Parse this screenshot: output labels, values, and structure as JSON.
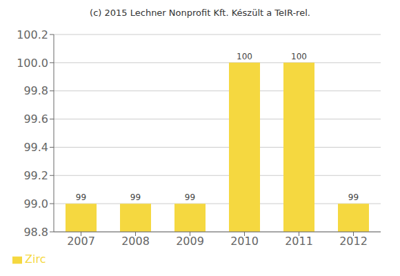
{
  "chart_data": {
    "type": "bar",
    "title": "(c) 2015 Lechner Nonprofit Kft. Készült a TeIR-rel.",
    "categories": [
      "2007",
      "2008",
      "2009",
      "2010",
      "2011",
      "2012"
    ],
    "series": [
      {
        "name": "Zirc",
        "color": "#F5D840",
        "values": [
          99,
          99,
          99,
          100,
          100,
          99
        ]
      }
    ],
    "ylim": [
      98.8,
      100.2
    ],
    "yticks": [
      98.8,
      {
        "value": 99.0,
        "label": "99.0"
      },
      99.2,
      99.4,
      99.6,
      99.8,
      {
        "value": 100.0,
        "label": "100.0"
      },
      100.2
    ],
    "grid": true,
    "legend": "bottom",
    "data_labels": true
  }
}
